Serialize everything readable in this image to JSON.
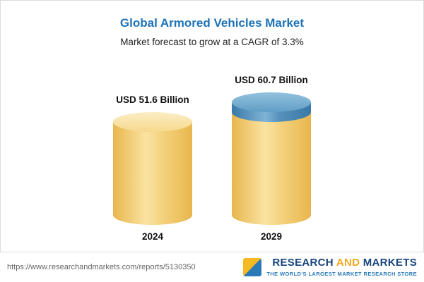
{
  "header": {
    "title": "Global Armored Vehicles Market",
    "subtitle": "Market forecast to grow at a CAGR of 3.3%"
  },
  "chart_data": {
    "type": "bar",
    "title": "Global Armored Vehicles Market",
    "subtitle": "Market forecast to grow at a CAGR of 3.3%",
    "categories": [
      "2024",
      "2029"
    ],
    "values": [
      51.6,
      60.7
    ],
    "unit": "USD Billion",
    "labels": [
      "USD 51.6 Billion",
      "USD 60.7 Billion"
    ],
    "cagr": "3.3%",
    "ylim": [
      0,
      65
    ],
    "legend": "none",
    "grid": false,
    "colors": {
      "bar_body": "#f2cf77",
      "growth_segment": "#4b87b5",
      "title_text": "#1e73b8"
    }
  },
  "footer": {
    "url": "https://www.researchandmarkets.com/reports/5130350",
    "logo": {
      "part1": "RESEARCH",
      "part2": "AND",
      "part3": "MARKETS",
      "tagline": "THE WORLD'S LARGEST MARKET RESEARCH STORE"
    }
  }
}
